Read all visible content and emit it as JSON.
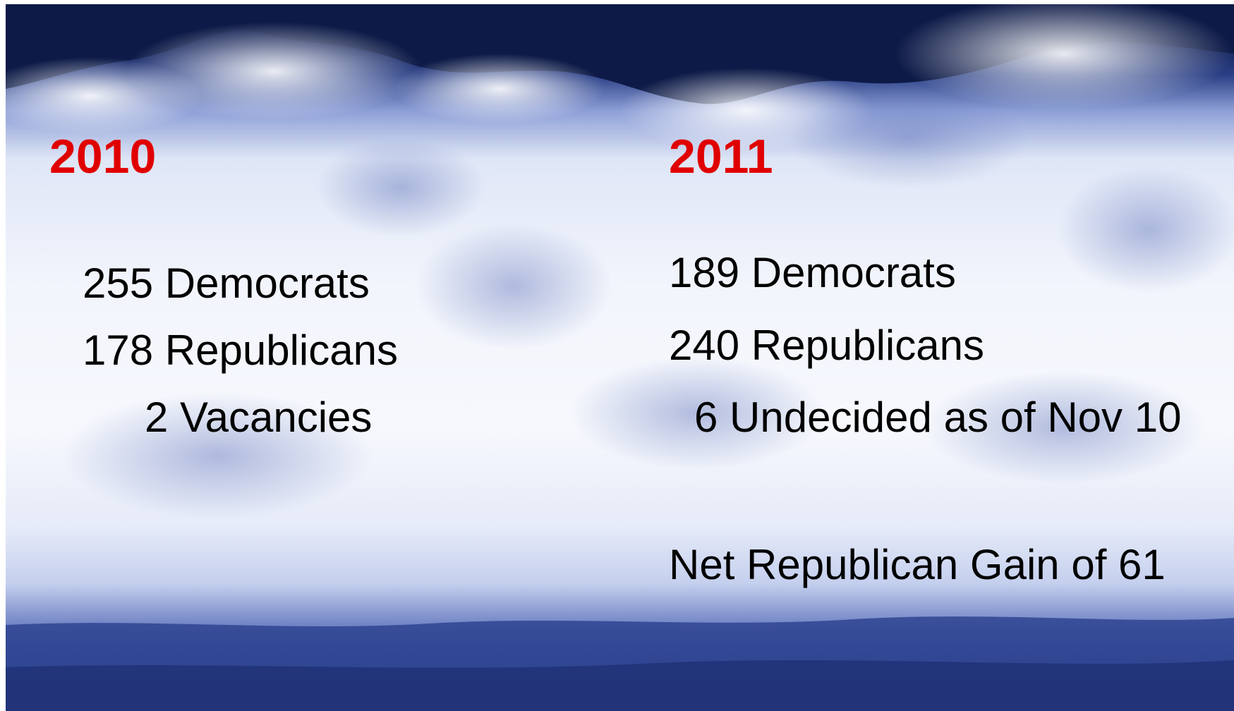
{
  "left_column": {
    "year": "2010",
    "lines": [
      "255 Democrats",
      "178 Republicans",
      "2 Vacancies"
    ]
  },
  "right_column": {
    "year": "2011",
    "lines": [
      "189 Democrats",
      "240 Republicans",
      "6 Undecided as of Nov 10"
    ],
    "summary": "Net Republican Gain of 61"
  },
  "colors": {
    "year_text": "#e00000",
    "body_text": "#000000",
    "water_dark": "#0b1740",
    "water_blue": "#3c52a0",
    "foam": "#f4f6fd"
  },
  "background": {
    "image_description_icon": "ocean-wave-photo"
  }
}
